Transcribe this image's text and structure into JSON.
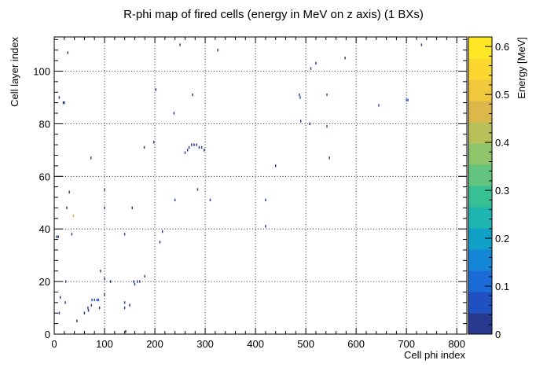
{
  "chart_data": {
    "type": "heatmap",
    "title": "R-phi map of fired cells (energy in MeV on z axis) (1 BXs)",
    "xlabel": "Cell phi index",
    "ylabel": "Cell layer index",
    "zlabel": "Energy [MeV]",
    "xlim": [
      0,
      820
    ],
    "ylim": [
      0,
      113
    ],
    "zlim": [
      0,
      0.62
    ],
    "x_ticks": [
      0,
      100,
      200,
      300,
      400,
      500,
      600,
      700,
      800
    ],
    "y_ticks": [
      0,
      20,
      40,
      60,
      80,
      100
    ],
    "z_ticks": [
      0,
      0.1,
      0.2,
      0.3,
      0.4,
      0.5,
      0.6
    ],
    "grid": true,
    "colormap": "parula-like",
    "colors": [
      "#283a8f",
      "#2051c0",
      "#1a6ad8",
      "#1487d9",
      "#11a0c6",
      "#1fb5b0",
      "#38c095",
      "#62c47d",
      "#8ec46a",
      "#b8c05a",
      "#dcb84b",
      "#f0c93c",
      "#fad82f",
      "#fde725"
    ],
    "cells": [
      [
        27,
        107,
        0.02
      ],
      [
        250,
        110,
        0.03
      ],
      [
        325,
        108,
        0.02
      ],
      [
        730,
        110,
        0.02
      ],
      [
        578,
        105,
        0.03
      ],
      [
        520,
        103,
        0.02
      ],
      [
        510,
        101,
        0.02
      ],
      [
        202,
        93,
        0.01
      ],
      [
        10,
        90,
        0.04
      ],
      [
        18,
        88,
        0.03
      ],
      [
        20,
        88,
        0.04
      ],
      [
        275,
        91,
        0.02
      ],
      [
        487,
        91,
        0.03
      ],
      [
        489,
        90,
        0.05
      ],
      [
        542,
        91,
        0.05
      ],
      [
        645,
        87,
        0.05
      ],
      [
        700,
        89,
        0.05
      ],
      [
        703,
        89,
        0.05
      ],
      [
        238,
        84,
        0.01
      ],
      [
        490,
        81,
        0.02
      ],
      [
        508,
        80,
        0.02
      ],
      [
        542,
        79,
        0.05
      ],
      [
        547,
        67,
        0.02
      ],
      [
        179,
        71,
        0.02
      ],
      [
        198,
        73,
        0.01
      ],
      [
        73,
        67,
        0.02
      ],
      [
        260,
        69,
        0.04
      ],
      [
        265,
        70,
        0.04
      ],
      [
        268,
        71,
        0.04
      ],
      [
        273,
        72,
        0.04
      ],
      [
        278,
        72,
        0.04
      ],
      [
        283,
        72,
        0.04
      ],
      [
        288,
        71,
        0.04
      ],
      [
        293,
        71,
        0.04
      ],
      [
        298,
        70,
        0.04
      ],
      [
        440,
        64,
        0.02
      ],
      [
        100,
        55,
        0.02
      ],
      [
        285,
        55,
        0.04
      ],
      [
        30,
        54,
        0.01
      ],
      [
        240,
        51,
        0.04
      ],
      [
        310,
        51,
        0.02
      ],
      [
        420,
        51,
        0.02
      ],
      [
        155,
        48,
        0.02
      ],
      [
        100,
        48,
        0.01
      ],
      [
        25,
        48,
        0.01
      ],
      [
        38,
        45,
        0.45
      ],
      [
        420,
        41,
        0.01
      ],
      [
        5,
        37,
        0.03
      ],
      [
        8,
        37,
        0.04
      ],
      [
        35,
        38,
        0.03
      ],
      [
        140,
        38,
        0.01
      ],
      [
        215,
        39,
        0.01
      ],
      [
        210,
        35,
        0.01
      ],
      [
        92,
        24,
        0.01
      ],
      [
        112,
        20,
        0.03
      ],
      [
        100,
        21,
        0.02
      ],
      [
        180,
        22,
        0.01
      ],
      [
        170,
        20,
        0.03
      ],
      [
        165,
        20,
        0.02
      ],
      [
        160,
        19,
        0.04
      ],
      [
        158,
        20,
        0.02
      ],
      [
        23,
        20,
        0.02
      ],
      [
        12,
        14,
        0.01
      ],
      [
        75,
        13,
        0.05
      ],
      [
        80,
        13,
        0.05
      ],
      [
        85,
        13,
        0.05
      ],
      [
        88,
        13,
        0.05
      ],
      [
        74,
        11,
        0.04
      ],
      [
        67,
        10,
        0.03
      ],
      [
        68,
        9,
        0.02
      ],
      [
        22,
        12,
        0.02
      ],
      [
        140,
        12,
        0.01
      ],
      [
        100,
        15,
        0.01
      ],
      [
        150,
        11,
        0.02
      ],
      [
        90,
        10,
        0.02
      ],
      [
        140,
        10,
        0.02
      ],
      [
        60,
        8,
        0.02
      ],
      [
        10,
        8,
        0.02
      ],
      [
        45,
        5,
        0.03
      ],
      [
        142,
        1,
        0.02
      ]
    ]
  }
}
